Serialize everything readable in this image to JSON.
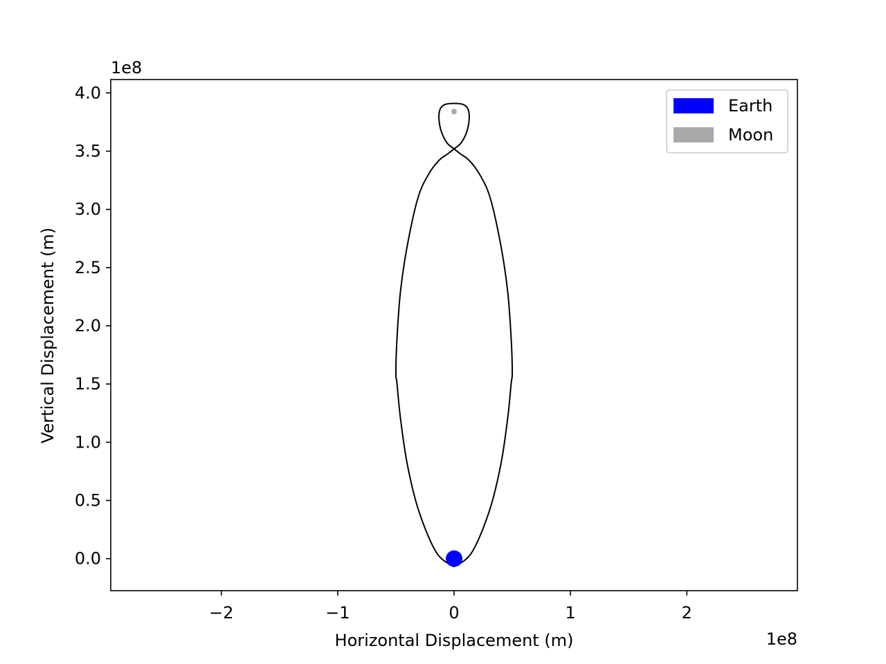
{
  "chart_data": {
    "type": "line",
    "xlabel": "Horizontal Displacement (m)",
    "ylabel": "Vertical Displacement (m)",
    "x_offset_text": "1e8",
    "y_offset_text": "1e8",
    "xlim": [
      -2.95,
      2.95
    ],
    "ylim": [
      -0.275,
      4.115
    ],
    "x_ticks": [
      -2,
      -1,
      0,
      1,
      2
    ],
    "x_tick_labels": [
      "−2",
      "−1",
      "0",
      "1",
      "2"
    ],
    "y_ticks": [
      0.0,
      0.5,
      1.0,
      1.5,
      2.0,
      2.5,
      3.0,
      3.5,
      4.0
    ],
    "y_tick_labels": [
      "0.0",
      "0.5",
      "1.0",
      "1.5",
      "2.0",
      "2.5",
      "3.0",
      "3.5",
      "4.0"
    ],
    "trajectory": {
      "color": "#000000",
      "x": [
        0.0,
        0.15,
        0.3,
        0.4,
        0.46,
        0.49,
        0.5,
        0.49,
        0.46,
        0.4,
        0.31,
        0.22,
        0.13,
        0.05,
        0.0,
        -0.06,
        -0.11,
        -0.13,
        -0.12,
        -0.08,
        0.0,
        0.08,
        0.12,
        0.13,
        0.11,
        0.06,
        0.0,
        -0.05,
        -0.13,
        -0.22,
        -0.31,
        -0.4,
        -0.46,
        -0.49,
        -0.5,
        -0.49,
        -0.46,
        -0.4,
        -0.3,
        -0.15,
        0.0
      ],
      "y": [
        -0.07,
        0.05,
        0.4,
        0.8,
        1.2,
        1.5,
        1.6,
        1.9,
        2.3,
        2.7,
        3.1,
        3.3,
        3.42,
        3.48,
        3.52,
        3.57,
        3.67,
        3.78,
        3.86,
        3.9,
        3.91,
        3.9,
        3.86,
        3.78,
        3.67,
        3.57,
        3.52,
        3.48,
        3.42,
        3.3,
        3.1,
        2.7,
        2.3,
        1.9,
        1.6,
        1.5,
        1.2,
        0.8,
        0.4,
        0.05,
        -0.07
      ]
    },
    "bodies": [
      {
        "name": "Earth",
        "x": 0.0,
        "y": 0.0,
        "color": "#0000ff"
      },
      {
        "name": "Moon",
        "x": 0.0,
        "y": 3.84,
        "color": "#a9a9a9"
      }
    ],
    "legend": {
      "placement": "top-right",
      "entries": [
        {
          "label": "Earth",
          "color": "#0000ff"
        },
        {
          "label": "Moon",
          "color": "#a9a9a9"
        }
      ]
    },
    "grid": false
  }
}
